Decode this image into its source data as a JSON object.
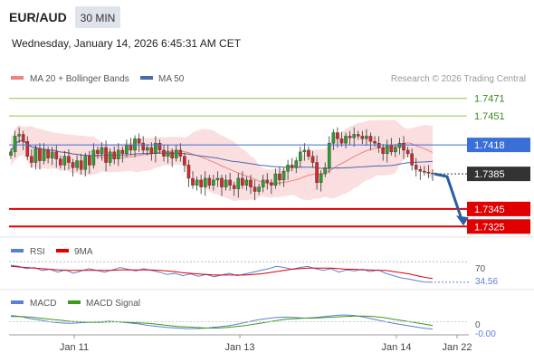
{
  "header": {
    "pair": "EUR/AUD",
    "timeframe": "30 MIN",
    "datetime": "Wednesday, January 14, 2026 6:45:31 AM CET",
    "credit": "Research © 2026 Trading Central"
  },
  "colors": {
    "candle_up": "#2ca02c",
    "candle_down": "#d62728",
    "bollinger_fill": "#fadadd",
    "ma20": "#f28080",
    "ma50": "#4a6aa8",
    "resistance": "#8cc63f",
    "pivot": "#3a6fd8",
    "support": "#e00000",
    "current": "#333333",
    "rsi": "#5b7fd6",
    "rsi_ma": "#e00000",
    "macd": "#5b7fd6",
    "macd_signal": "#3a9a1a",
    "arrow": "#2a5ca8"
  },
  "chart_data": [
    {
      "type": "candlestick",
      "pane": "price",
      "legend": [
        {
          "name": "MA 20 + Bollinger Bands",
          "color": "#f28080"
        },
        {
          "name": "MA 50",
          "color": "#4a6aa8"
        }
      ],
      "x_ticks": [
        "Jan 11",
        "Jan 13",
        "Jan 14",
        "Jan 22"
      ],
      "ylim": [
        1.7315,
        1.748
      ],
      "closes": [
        1.741,
        1.7428,
        1.743,
        1.7422,
        1.7405,
        1.7398,
        1.7414,
        1.74,
        1.7412,
        1.7403,
        1.741,
        1.7402,
        1.7395,
        1.7405,
        1.7398,
        1.7392,
        1.74,
        1.739,
        1.7405,
        1.7395,
        1.7412,
        1.7408,
        1.7415,
        1.7398,
        1.741,
        1.7402,
        1.7412,
        1.7408,
        1.7418,
        1.7412,
        1.7425,
        1.742,
        1.7412,
        1.7415,
        1.7408,
        1.742,
        1.7412,
        1.7405,
        1.741,
        1.7403,
        1.7412,
        1.7405,
        1.7395,
        1.738,
        1.7372,
        1.7378,
        1.737,
        1.738,
        1.7372,
        1.7378,
        1.738,
        1.737,
        1.7378,
        1.7372,
        1.7368,
        1.738,
        1.7372,
        1.7378,
        1.737,
        1.7365,
        1.737,
        1.7378,
        1.7375,
        1.7372,
        1.7385,
        1.7378,
        1.7388,
        1.7395,
        1.7392,
        1.74,
        1.741,
        1.7412,
        1.7405,
        1.7398,
        1.7375,
        1.7385,
        1.7392,
        1.742,
        1.7432,
        1.7425,
        1.742,
        1.7428,
        1.7426,
        1.743,
        1.7428,
        1.7425,
        1.7428,
        1.7422,
        1.742,
        1.7415,
        1.7408,
        1.7418,
        1.741,
        1.7415,
        1.742,
        1.7412,
        1.7408,
        1.7395,
        1.739,
        1.7388,
        1.7387,
        1.7386,
        1.7385
      ],
      "levels": [
        {
          "label": "1.7471",
          "value": 1.7471,
          "kind": "resistance"
        },
        {
          "label": "1.7451",
          "value": 1.7451,
          "kind": "resistance"
        },
        {
          "label": "1.7418",
          "value": 1.7418,
          "kind": "pivot"
        },
        {
          "label": "1.7385",
          "value": 1.7385,
          "kind": "current"
        },
        {
          "label": "1.7345",
          "value": 1.7345,
          "kind": "support"
        },
        {
          "label": "1.7325",
          "value": 1.7325,
          "kind": "support"
        }
      ],
      "forecast_arrow": {
        "from": 1.7385,
        "to": 1.7325
      }
    },
    {
      "type": "line",
      "pane": "rsi",
      "legend": [
        {
          "name": "RSI",
          "color": "#5b7fd6"
        },
        {
          "name": "9MA",
          "color": "#e00000"
        }
      ],
      "ylim": [
        25,
        75
      ],
      "tick_labels": [
        "70"
      ],
      "last_value_label": "34.56",
      "series": [
        {
          "name": "RSI",
          "values": [
            64,
            62,
            58,
            60,
            55,
            57,
            52,
            56,
            50,
            54,
            58,
            55,
            52,
            56,
            60,
            57,
            54,
            58,
            55,
            52,
            48,
            50,
            46,
            49,
            45,
            48,
            44,
            47,
            50,
            46,
            49,
            52,
            55,
            58,
            62,
            60,
            57,
            60,
            62,
            58,
            55,
            58,
            52,
            56,
            54,
            57,
            53,
            56,
            50,
            46,
            42,
            40,
            37,
            35,
            34.56
          ]
        },
        {
          "name": "9MA",
          "values": [
            62,
            61,
            60,
            59,
            58,
            57,
            56,
            55,
            55,
            55,
            55,
            55,
            55,
            55,
            56,
            56,
            56,
            56,
            56,
            55,
            54,
            53,
            51,
            50,
            49,
            48,
            47,
            47,
            47,
            47,
            47,
            48,
            49,
            51,
            53,
            55,
            57,
            58,
            59,
            59,
            59,
            59,
            58,
            57,
            57,
            56,
            56,
            55,
            55,
            53,
            51,
            49,
            46,
            43,
            41
          ]
        }
      ]
    },
    {
      "type": "line",
      "pane": "macd",
      "legend": [
        {
          "name": "MACD",
          "color": "#5b7fd6"
        },
        {
          "name": "MACD Signal",
          "color": "#3a9a1a"
        }
      ],
      "ylim": [
        -0.0025,
        0.002
      ],
      "tick_labels": [
        "0"
      ],
      "last_value_label": "-0.00",
      "series": [
        {
          "name": "MACD",
          "values": [
            0.0012,
            0.001,
            0.0006,
            0.0003,
            0.0,
            -0.0002,
            -0.0003,
            -0.0002,
            -0.0001,
            0.0,
            0.0001,
            0.0,
            -0.0002,
            -0.0004,
            -0.0007,
            -0.0009,
            -0.0011,
            -0.0012,
            -0.0013,
            -0.0013,
            -0.0012,
            -0.001,
            -0.0008,
            -0.0005,
            -0.0001,
            0.0003,
            0.0006,
            0.0008,
            0.0009,
            0.0008,
            0.0007,
            0.0008,
            0.001,
            0.0012,
            0.0013,
            0.0012,
            0.0009,
            0.0005,
            0.0001,
            -0.0003,
            -0.0006,
            -0.0009,
            -0.0012,
            -0.0014
          ]
        },
        {
          "name": "MACD Signal",
          "values": [
            0.001,
            0.001,
            0.0009,
            0.0007,
            0.0005,
            0.0003,
            0.0001,
            0.0,
            -0.0001,
            -0.0001,
            0.0,
            0.0,
            -0.0001,
            -0.0002,
            -0.0003,
            -0.0005,
            -0.0007,
            -0.0009,
            -0.001,
            -0.0011,
            -0.0012,
            -0.0012,
            -0.0011,
            -0.0009,
            -0.0007,
            -0.0004,
            -0.0001,
            0.0002,
            0.0005,
            0.0006,
            0.0007,
            0.0007,
            0.0008,
            0.0009,
            0.001,
            0.0011,
            0.0011,
            0.001,
            0.0008,
            0.0005,
            0.0002,
            -0.0001,
            -0.0004,
            -0.0007
          ]
        }
      ]
    }
  ]
}
